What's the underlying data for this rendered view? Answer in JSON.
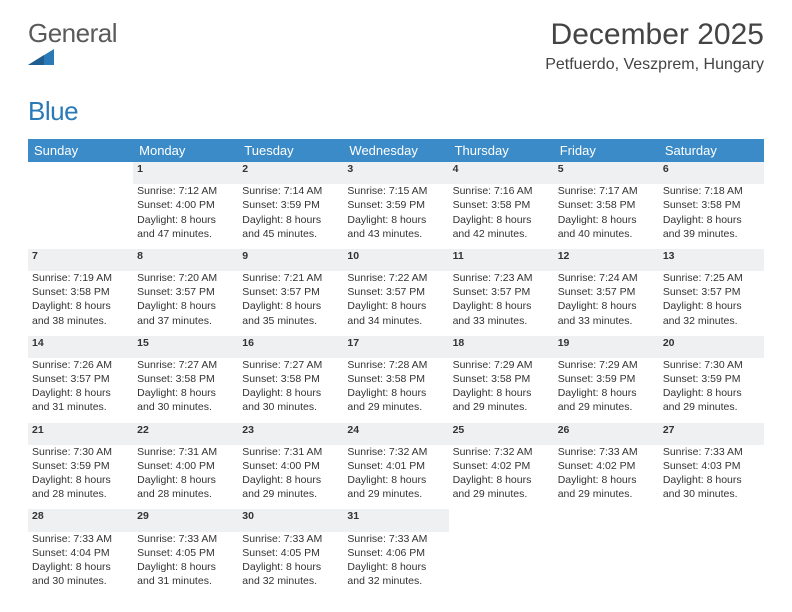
{
  "logo": {
    "word1": "General",
    "word2": "Blue"
  },
  "colors": {
    "header_bg": "#3b8bc8",
    "header_fg": "#ffffff",
    "daynum_bg": "#eef0f1",
    "daynum_border": "#3b8bc8",
    "logo_gray": "#5a5a5a",
    "logo_blue": "#2a7ab8",
    "text": "#333333"
  },
  "title": "December 2025",
  "location": "Petfuerdo, Veszprem, Hungary",
  "weekdays": [
    "Sunday",
    "Monday",
    "Tuesday",
    "Wednesday",
    "Thursday",
    "Friday",
    "Saturday"
  ],
  "weeks": [
    [
      null,
      {
        "n": "1",
        "sunrise": "Sunrise: 7:12 AM",
        "sunset": "Sunset: 4:00 PM",
        "daylight": "Daylight: 8 hours and 47 minutes."
      },
      {
        "n": "2",
        "sunrise": "Sunrise: 7:14 AM",
        "sunset": "Sunset: 3:59 PM",
        "daylight": "Daylight: 8 hours and 45 minutes."
      },
      {
        "n": "3",
        "sunrise": "Sunrise: 7:15 AM",
        "sunset": "Sunset: 3:59 PM",
        "daylight": "Daylight: 8 hours and 43 minutes."
      },
      {
        "n": "4",
        "sunrise": "Sunrise: 7:16 AM",
        "sunset": "Sunset: 3:58 PM",
        "daylight": "Daylight: 8 hours and 42 minutes."
      },
      {
        "n": "5",
        "sunrise": "Sunrise: 7:17 AM",
        "sunset": "Sunset: 3:58 PM",
        "daylight": "Daylight: 8 hours and 40 minutes."
      },
      {
        "n": "6",
        "sunrise": "Sunrise: 7:18 AM",
        "sunset": "Sunset: 3:58 PM",
        "daylight": "Daylight: 8 hours and 39 minutes."
      }
    ],
    [
      {
        "n": "7",
        "sunrise": "Sunrise: 7:19 AM",
        "sunset": "Sunset: 3:58 PM",
        "daylight": "Daylight: 8 hours and 38 minutes."
      },
      {
        "n": "8",
        "sunrise": "Sunrise: 7:20 AM",
        "sunset": "Sunset: 3:57 PM",
        "daylight": "Daylight: 8 hours and 37 minutes."
      },
      {
        "n": "9",
        "sunrise": "Sunrise: 7:21 AM",
        "sunset": "Sunset: 3:57 PM",
        "daylight": "Daylight: 8 hours and 35 minutes."
      },
      {
        "n": "10",
        "sunrise": "Sunrise: 7:22 AM",
        "sunset": "Sunset: 3:57 PM",
        "daylight": "Daylight: 8 hours and 34 minutes."
      },
      {
        "n": "11",
        "sunrise": "Sunrise: 7:23 AM",
        "sunset": "Sunset: 3:57 PM",
        "daylight": "Daylight: 8 hours and 33 minutes."
      },
      {
        "n": "12",
        "sunrise": "Sunrise: 7:24 AM",
        "sunset": "Sunset: 3:57 PM",
        "daylight": "Daylight: 8 hours and 33 minutes."
      },
      {
        "n": "13",
        "sunrise": "Sunrise: 7:25 AM",
        "sunset": "Sunset: 3:57 PM",
        "daylight": "Daylight: 8 hours and 32 minutes."
      }
    ],
    [
      {
        "n": "14",
        "sunrise": "Sunrise: 7:26 AM",
        "sunset": "Sunset: 3:57 PM",
        "daylight": "Daylight: 8 hours and 31 minutes."
      },
      {
        "n": "15",
        "sunrise": "Sunrise: 7:27 AM",
        "sunset": "Sunset: 3:58 PM",
        "daylight": "Daylight: 8 hours and 30 minutes."
      },
      {
        "n": "16",
        "sunrise": "Sunrise: 7:27 AM",
        "sunset": "Sunset: 3:58 PM",
        "daylight": "Daylight: 8 hours and 30 minutes."
      },
      {
        "n": "17",
        "sunrise": "Sunrise: 7:28 AM",
        "sunset": "Sunset: 3:58 PM",
        "daylight": "Daylight: 8 hours and 29 minutes."
      },
      {
        "n": "18",
        "sunrise": "Sunrise: 7:29 AM",
        "sunset": "Sunset: 3:58 PM",
        "daylight": "Daylight: 8 hours and 29 minutes."
      },
      {
        "n": "19",
        "sunrise": "Sunrise: 7:29 AM",
        "sunset": "Sunset: 3:59 PM",
        "daylight": "Daylight: 8 hours and 29 minutes."
      },
      {
        "n": "20",
        "sunrise": "Sunrise: 7:30 AM",
        "sunset": "Sunset: 3:59 PM",
        "daylight": "Daylight: 8 hours and 29 minutes."
      }
    ],
    [
      {
        "n": "21",
        "sunrise": "Sunrise: 7:30 AM",
        "sunset": "Sunset: 3:59 PM",
        "daylight": "Daylight: 8 hours and 28 minutes."
      },
      {
        "n": "22",
        "sunrise": "Sunrise: 7:31 AM",
        "sunset": "Sunset: 4:00 PM",
        "daylight": "Daylight: 8 hours and 28 minutes."
      },
      {
        "n": "23",
        "sunrise": "Sunrise: 7:31 AM",
        "sunset": "Sunset: 4:00 PM",
        "daylight": "Daylight: 8 hours and 29 minutes."
      },
      {
        "n": "24",
        "sunrise": "Sunrise: 7:32 AM",
        "sunset": "Sunset: 4:01 PM",
        "daylight": "Daylight: 8 hours and 29 minutes."
      },
      {
        "n": "25",
        "sunrise": "Sunrise: 7:32 AM",
        "sunset": "Sunset: 4:02 PM",
        "daylight": "Daylight: 8 hours and 29 minutes."
      },
      {
        "n": "26",
        "sunrise": "Sunrise: 7:33 AM",
        "sunset": "Sunset: 4:02 PM",
        "daylight": "Daylight: 8 hours and 29 minutes."
      },
      {
        "n": "27",
        "sunrise": "Sunrise: 7:33 AM",
        "sunset": "Sunset: 4:03 PM",
        "daylight": "Daylight: 8 hours and 30 minutes."
      }
    ],
    [
      {
        "n": "28",
        "sunrise": "Sunrise: 7:33 AM",
        "sunset": "Sunset: 4:04 PM",
        "daylight": "Daylight: 8 hours and 30 minutes."
      },
      {
        "n": "29",
        "sunrise": "Sunrise: 7:33 AM",
        "sunset": "Sunset: 4:05 PM",
        "daylight": "Daylight: 8 hours and 31 minutes."
      },
      {
        "n": "30",
        "sunrise": "Sunrise: 7:33 AM",
        "sunset": "Sunset: 4:05 PM",
        "daylight": "Daylight: 8 hours and 32 minutes."
      },
      {
        "n": "31",
        "sunrise": "Sunrise: 7:33 AM",
        "sunset": "Sunset: 4:06 PM",
        "daylight": "Daylight: 8 hours and 32 minutes."
      },
      null,
      null,
      null
    ]
  ]
}
